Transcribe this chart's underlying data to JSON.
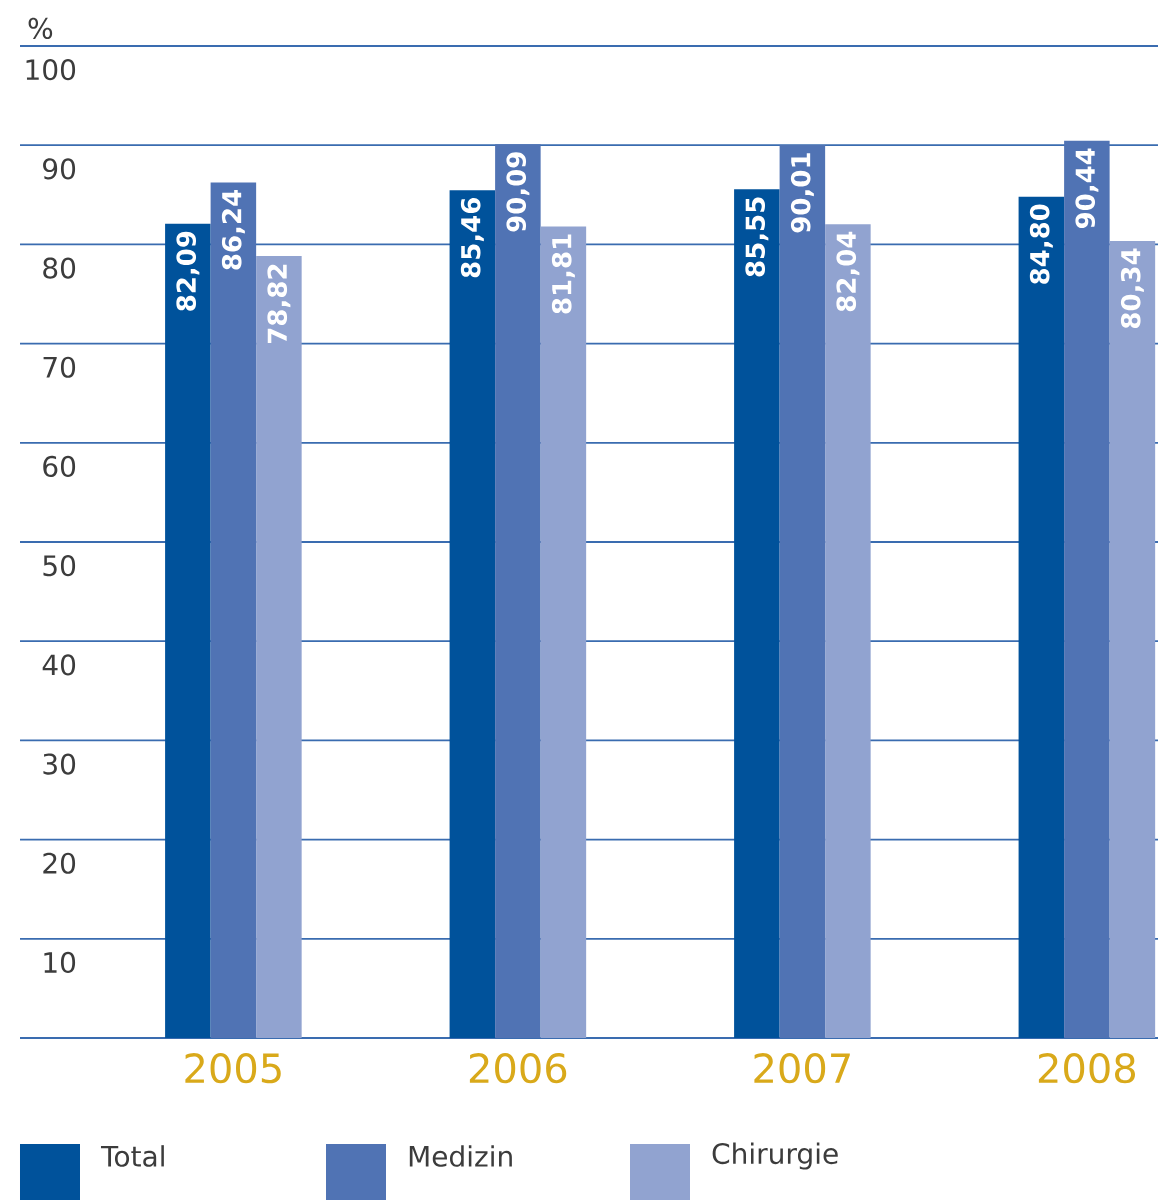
{
  "chart_data": {
    "type": "bar",
    "ylabel": "%",
    "categories": [
      "2005",
      "2006",
      "2007",
      "2008"
    ],
    "series": [
      {
        "name": "Total",
        "color": "#00529b",
        "values": [
          82.09,
          85.46,
          85.55,
          84.8
        ],
        "value_labels": [
          "82,09",
          "85,46",
          "85,55",
          "84,80"
        ]
      },
      {
        "name": "Medizin",
        "color": "#5073b4",
        "values": [
          86.24,
          90.09,
          90.01,
          90.44
        ],
        "value_labels": [
          "86,24",
          "90,09",
          "90,01",
          "90,44"
        ]
      },
      {
        "name": "Chirurgie",
        "color": "#91a3d0",
        "values": [
          78.82,
          81.81,
          82.04,
          80.34
        ],
        "value_labels": [
          "78,82",
          "81,81",
          "82,04",
          "80,34"
        ]
      }
    ],
    "ylim": [
      0,
      100
    ],
    "yticks": [
      10,
      20,
      30,
      40,
      50,
      60,
      70,
      80,
      90,
      100
    ],
    "grid": "y",
    "legend": "bottom"
  }
}
